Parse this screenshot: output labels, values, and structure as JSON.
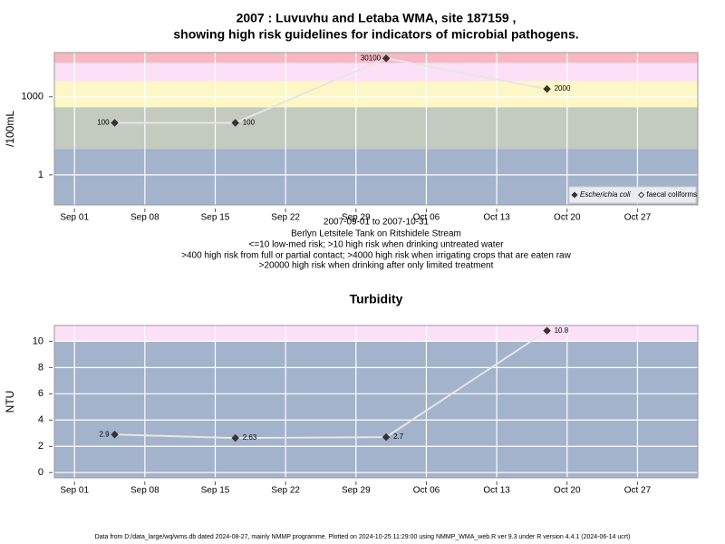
{
  "chart_data": [
    {
      "type": "line",
      "title": [
        "2007 : Luvuvhu and Letaba WMA, site 187159 ,",
        "showing high risk guidelines for indicators of microbial pathogens."
      ],
      "ylabel": "/100mL",
      "log": true,
      "grid": true,
      "x": [
        "2007-09-05",
        "2007-09-17",
        "2007-10-02",
        "2007-10-18"
      ],
      "series": [
        {
          "name": "Escherichia coli",
          "color": "#333333",
          "values": [
            100,
            100,
            30100,
            2000
          ]
        },
        {
          "name": "faecal coliforms",
          "color": "#333333",
          "values": [
            null,
            null,
            null,
            null
          ]
        }
      ],
      "xlim": [
        "2007-08-30",
        "2007-11-02"
      ],
      "xticks": [
        {
          "value": "2007-09-01",
          "label": "Sep 01"
        },
        {
          "value": "2007-09-08",
          "label": "Sep 08"
        },
        {
          "value": "2007-09-15",
          "label": "Sep 15"
        },
        {
          "value": "2007-09-22",
          "label": "Sep 22"
        },
        {
          "value": "2007-09-29",
          "label": "Sep 29"
        },
        {
          "value": "2007-10-06",
          "label": "Oct 06"
        },
        {
          "value": "2007-10-13",
          "label": "Oct 13"
        },
        {
          "value": "2007-10-20",
          "label": "Oct 20"
        },
        {
          "value": "2007-10-27",
          "label": "Oct 27"
        }
      ],
      "ylim": [
        0.07,
        50000
      ],
      "yticks": [
        1,
        1000
      ],
      "thresholds": [
        10,
        400,
        4000,
        20000
      ],
      "band_colors": [
        "#a3b3cc",
        "#c3cbc0",
        "#fdf7c5",
        "#fbe0f7",
        "#f7b8c4"
      ],
      "legend": "bottom right",
      "notes": [
        "2007-09-01 to 2007-10-31",
        "Berlyn Letsitele Tank on Ritshidele Stream",
        "<=10 low-med risk; >10 high risk when drinking untreated water",
        ">400 high risk from full or partial contact; >4000 high risk when irrigating crops that are eaten raw",
        ">20000 high risk when drinking after only limited treatment"
      ]
    },
    {
      "type": "line",
      "title": [
        "Turbidity"
      ],
      "ylabel": "NTU",
      "log": false,
      "grid": true,
      "x": [
        "2007-09-05",
        "2007-09-17",
        "2007-10-02",
        "2007-10-18"
      ],
      "series": [
        {
          "name": "Turbidity",
          "color": "#333333",
          "values": [
            2.9,
            2.63,
            2.7,
            10.8
          ]
        }
      ],
      "xlim": [
        "2007-08-30",
        "2007-11-02"
      ],
      "xticks": [
        {
          "value": "2007-09-01",
          "label": "Sep 01"
        },
        {
          "value": "2007-09-08",
          "label": "Sep 08"
        },
        {
          "value": "2007-09-15",
          "label": "Sep 15"
        },
        {
          "value": "2007-09-22",
          "label": "Sep 22"
        },
        {
          "value": "2007-09-29",
          "label": "Sep 29"
        },
        {
          "value": "2007-10-06",
          "label": "Oct 06"
        },
        {
          "value": "2007-10-13",
          "label": "Oct 13"
        },
        {
          "value": "2007-10-20",
          "label": "Oct 20"
        },
        {
          "value": "2007-10-27",
          "label": "Oct 27"
        }
      ],
      "ylim": [
        -0.4,
        11.2
      ],
      "yticks": [
        0,
        2,
        4,
        6,
        8,
        10
      ],
      "thresholds": [
        10
      ],
      "band_colors": [
        "#a3b3cc",
        "#fbe0f7"
      ]
    }
  ],
  "footer": "Data from D:/data_large/wq/wms.db dated 2024-08-27, mainly NMMP programme. Plotted on 2024-10-25 11:29:00 using NMMP_WMA_web.R ver 9.3 under R version 4.4.1 (2024-06-14 ucrt)"
}
